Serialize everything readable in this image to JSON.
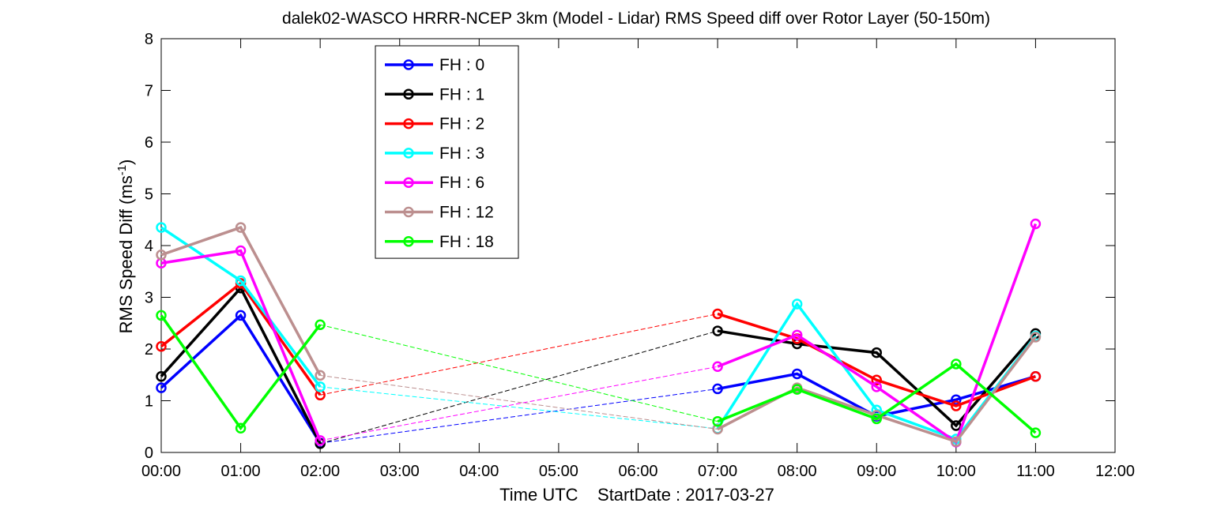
{
  "chart_data": {
    "type": "line",
    "title": "dalek02-WASCO HRRR-NCEP 3km (Model - Lidar) RMS Speed diff over Rotor Layer (50-150m)",
    "xlabel": "Time UTC    StartDate : 2017-03-27",
    "ylabel": "RMS Speed Diff (ms",
    "ylabel_sup": "-1",
    "ylabel_close": ")",
    "xlim": [
      0,
      12
    ],
    "ylim": [
      0,
      8
    ],
    "x_tick_labels": [
      "00:00",
      "01:00",
      "02:00",
      "03:00",
      "04:00",
      "05:00",
      "06:00",
      "07:00",
      "08:00",
      "09:00",
      "10:00",
      "11:00",
      "12:00"
    ],
    "y_tick_labels": [
      "0",
      "1",
      "2",
      "3",
      "4",
      "5",
      "6",
      "7",
      "8"
    ],
    "x": [
      0,
      1,
      2,
      7,
      8,
      9,
      10,
      11
    ],
    "gap_between": [
      2,
      7
    ],
    "grid": false,
    "legend_position": "upper-left-inside",
    "series": [
      {
        "name": "FH : 0",
        "color": "#0000ff",
        "values": [
          1.25,
          2.65,
          0.18,
          1.23,
          1.52,
          0.7,
          1.02,
          1.47
        ]
      },
      {
        "name": "FH : 1",
        "color": "#000000",
        "values": [
          1.47,
          3.18,
          0.17,
          2.35,
          2.1,
          1.93,
          0.52,
          2.3
        ]
      },
      {
        "name": "FH : 2",
        "color": "#ff0000",
        "values": [
          2.05,
          3.27,
          1.11,
          2.68,
          2.2,
          1.4,
          0.9,
          1.47
        ]
      },
      {
        "name": "FH : 3",
        "color": "#00ffff",
        "values": [
          4.35,
          3.32,
          1.27,
          0.46,
          2.87,
          0.82,
          0.26,
          2.25
        ]
      },
      {
        "name": "FH : 6",
        "color": "#ff00ff",
        "values": [
          3.66,
          3.9,
          0.23,
          1.66,
          2.27,
          1.27,
          0.2,
          4.42
        ]
      },
      {
        "name": "FH : 12",
        "color": "#bc8f8f",
        "values": [
          3.82,
          4.35,
          1.49,
          0.45,
          1.25,
          0.72,
          0.21,
          2.23
        ]
      },
      {
        "name": "FH : 18",
        "color": "#00ff00",
        "values": [
          2.65,
          0.47,
          2.47,
          0.6,
          1.22,
          0.65,
          1.71,
          0.38
        ]
      }
    ]
  }
}
